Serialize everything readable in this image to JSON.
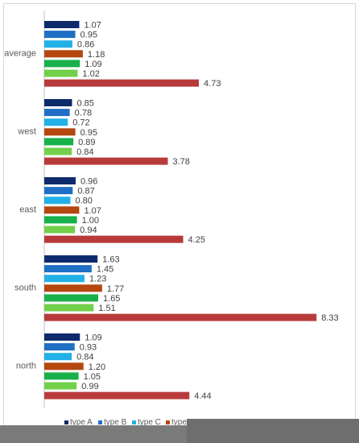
{
  "chart_data": {
    "type": "bar",
    "orientation": "horizontal",
    "categories": [
      "average",
      "west",
      "east",
      "south",
      "north"
    ],
    "series": [
      {
        "name": "type A",
        "color": "#0d2a6b",
        "values": [
          1.07,
          0.85,
          0.96,
          1.63,
          1.09
        ]
      },
      {
        "name": "type B",
        "color": "#1f6fc5",
        "values": [
          0.95,
          0.78,
          0.87,
          1.45,
          0.93
        ]
      },
      {
        "name": "type C",
        "color": "#22b0e8",
        "values": [
          0.86,
          0.72,
          0.8,
          1.23,
          0.84
        ]
      },
      {
        "name": "type D",
        "color": "#b5470f",
        "values": [
          1.18,
          0.95,
          1.07,
          1.77,
          1.2
        ]
      },
      {
        "name": "",
        "color": "#18b04a",
        "values": [
          1.09,
          0.89,
          1.0,
          1.65,
          1.05
        ]
      },
      {
        "name": "",
        "color": "#72d04a",
        "values": [
          1.02,
          0.84,
          0.94,
          1.51,
          0.99
        ]
      },
      {
        "name": "",
        "color": "#b83a3a",
        "values": [
          4.73,
          3.78,
          4.25,
          8.33,
          4.44
        ]
      }
    ],
    "value_labels": [
      [
        "1.07",
        "0.95",
        "0.86",
        "1.18",
        "1.09",
        "1.02",
        "4.73"
      ],
      [
        "0.85",
        "0.78",
        "0.72",
        "0.95",
        "0.89",
        "0.84",
        "3.78"
      ],
      [
        "0.96",
        "0.87",
        "0.80",
        "1.07",
        "1.00",
        "0.94",
        "4.25"
      ],
      [
        "1.63",
        "1.45",
        "1.23",
        "1.77",
        "1.65",
        "1.51",
        "8.33"
      ],
      [
        "1.09",
        "0.93",
        "0.84",
        "1.20",
        "1.05",
        "0.99",
        "4.44"
      ]
    ],
    "legend": {
      "visible_labels": [
        "type A",
        "type B",
        "type C",
        "type"
      ],
      "placement": "bottom"
    },
    "title": "",
    "xlabel": "",
    "ylabel": "",
    "xlim": [
      0,
      8.33
    ],
    "grid": false
  }
}
